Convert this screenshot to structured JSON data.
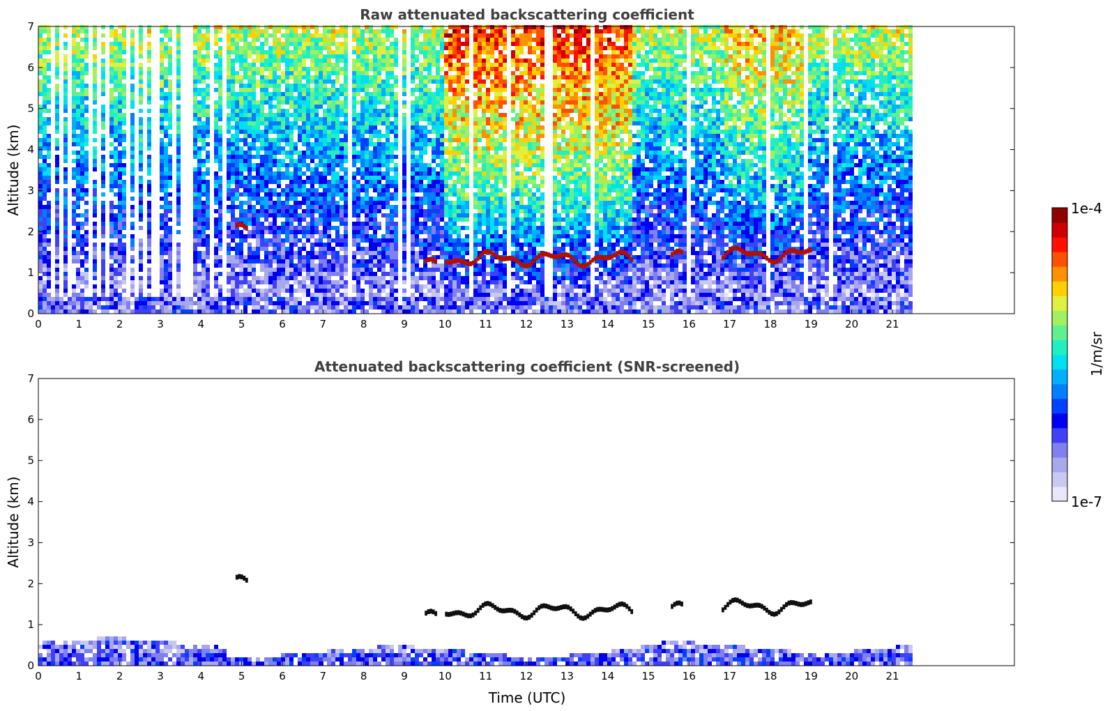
{
  "chart_data": [
    {
      "type": "heatmap",
      "title": "Raw attenuated backscattering coefficient",
      "xlabel": "",
      "ylabel": "Altitude (km)",
      "xlim": [
        0,
        24
      ],
      "ylim": [
        0,
        7
      ],
      "data_extent_x": [
        0,
        21.45
      ],
      "xticks": [
        0,
        1,
        2,
        3,
        4,
        5,
        6,
        7,
        8,
        9,
        10,
        11,
        12,
        13,
        14,
        15,
        16,
        17,
        18,
        19,
        20,
        21
      ],
      "yticks": [
        0,
        1,
        2,
        3,
        4,
        5,
        6,
        7
      ],
      "cloud_layers": [
        {
          "t_start": 4.85,
          "t_end": 5.1,
          "alt_km": 2.0
        },
        {
          "t_start": 9.5,
          "t_end": 9.8,
          "alt_km": 1.15
        },
        {
          "t_start": 10.0,
          "t_end": 14.6,
          "alt_km": 1.35
        },
        {
          "t_start": 15.55,
          "t_end": 15.8,
          "alt_km": 1.35
        },
        {
          "t_start": 16.8,
          "t_end": 19.0,
          "alt_km": 1.45
        }
      ],
      "grid": false
    },
    {
      "type": "heatmap",
      "title": "Attenuated backscattering coefficient (SNR-screened)",
      "xlabel": "Time (UTC)",
      "ylabel": "Altitude (km)",
      "xlim": [
        0,
        24
      ],
      "ylim": [
        0,
        7
      ],
      "data_extent_x": [
        0,
        21.45
      ],
      "xticks": [
        0,
        1,
        2,
        3,
        4,
        5,
        6,
        7,
        8,
        9,
        10,
        11,
        12,
        13,
        14,
        15,
        16,
        17,
        18,
        19,
        20,
        21
      ],
      "yticks": [
        0,
        1,
        2,
        3,
        4,
        5,
        6,
        7
      ],
      "grid": false
    }
  ],
  "colorbar": {
    "label": "1/m/sr",
    "min_label": "1e-7",
    "max_label": "1e-4",
    "colors": [
      "#e8e8f8",
      "#c8c8f0",
      "#a8a8ec",
      "#8080f0",
      "#4040f8",
      "#0000f0",
      "#0040ff",
      "#0080ff",
      "#00b0ff",
      "#00e0f0",
      "#20f0c0",
      "#60f090",
      "#a0f060",
      "#e0f040",
      "#ffd000",
      "#ff9000",
      "#ff5000",
      "#ff1000",
      "#d00000",
      "#900000"
    ]
  }
}
